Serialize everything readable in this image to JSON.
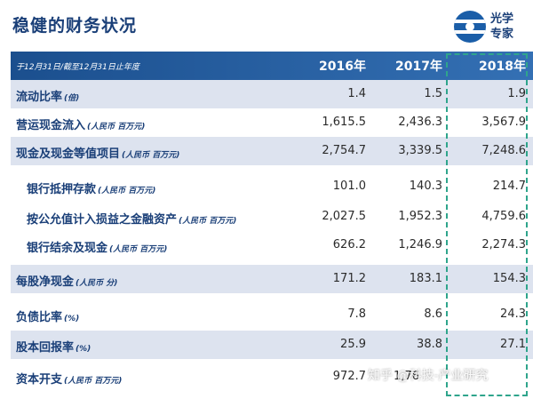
{
  "page": {
    "title": "稳健的财务状况",
    "logo_text_line1": "光学",
    "logo_text_line2": "专家"
  },
  "table": {
    "period_note": "于12月31日/截至12月31日止年度",
    "years": [
      "2016年",
      "2017年",
      "2018年"
    ],
    "rows": [
      {
        "label": "流动比率",
        "unit": "(倍)",
        "values": [
          "1.4",
          "1.5",
          "1.9"
        ]
      },
      {
        "label": "营运现金流入",
        "unit": "(人民币 百万元)",
        "values": [
          "1,615.5",
          "2,436.3",
          "3,567.9"
        ]
      },
      {
        "label": "现金及现金等值项目",
        "unit": "(人民币 百万元)",
        "values": [
          "2,754.7",
          "3,339.5",
          "7,248.6"
        ]
      },
      {
        "label": "银行抵押存款",
        "unit": "(人民币 百万元)",
        "values": [
          "101.0",
          "140.3",
          "214.7"
        ]
      },
      {
        "label": "按公允值计入损益之金融资产",
        "unit": "(人民币 百万元)",
        "values": [
          "2,027.5",
          "1,952.3",
          "4,759.6"
        ]
      },
      {
        "label": "银行结余及现金",
        "unit": "(人民币 百万元)",
        "values": [
          "626.2",
          "1,246.9",
          "2,274.3"
        ]
      },
      {
        "label": "每股净现金",
        "unit": "(人民币 分)",
        "values": [
          "171.2",
          "183.1",
          "154.3"
        ]
      },
      {
        "label": "负债比率",
        "unit": "(%)",
        "values": [
          "7.8",
          "8.6",
          "24.3"
        ]
      },
      {
        "label": "股本回报率",
        "unit": "(%)",
        "values": [
          "25.9",
          "38.8",
          "27.1"
        ]
      },
      {
        "label": "资本开支",
        "unit": "(人民币 百万元)",
        "values": [
          "972.7",
          "1,76",
          ""
        ]
      }
    ]
  },
  "watermark": "知乎 @科技-产业研究",
  "colors": {
    "title": "#1a3f78",
    "header": "#1b4f8e",
    "alt_row": "#dde3ef",
    "highlight": "#2fa58c"
  }
}
